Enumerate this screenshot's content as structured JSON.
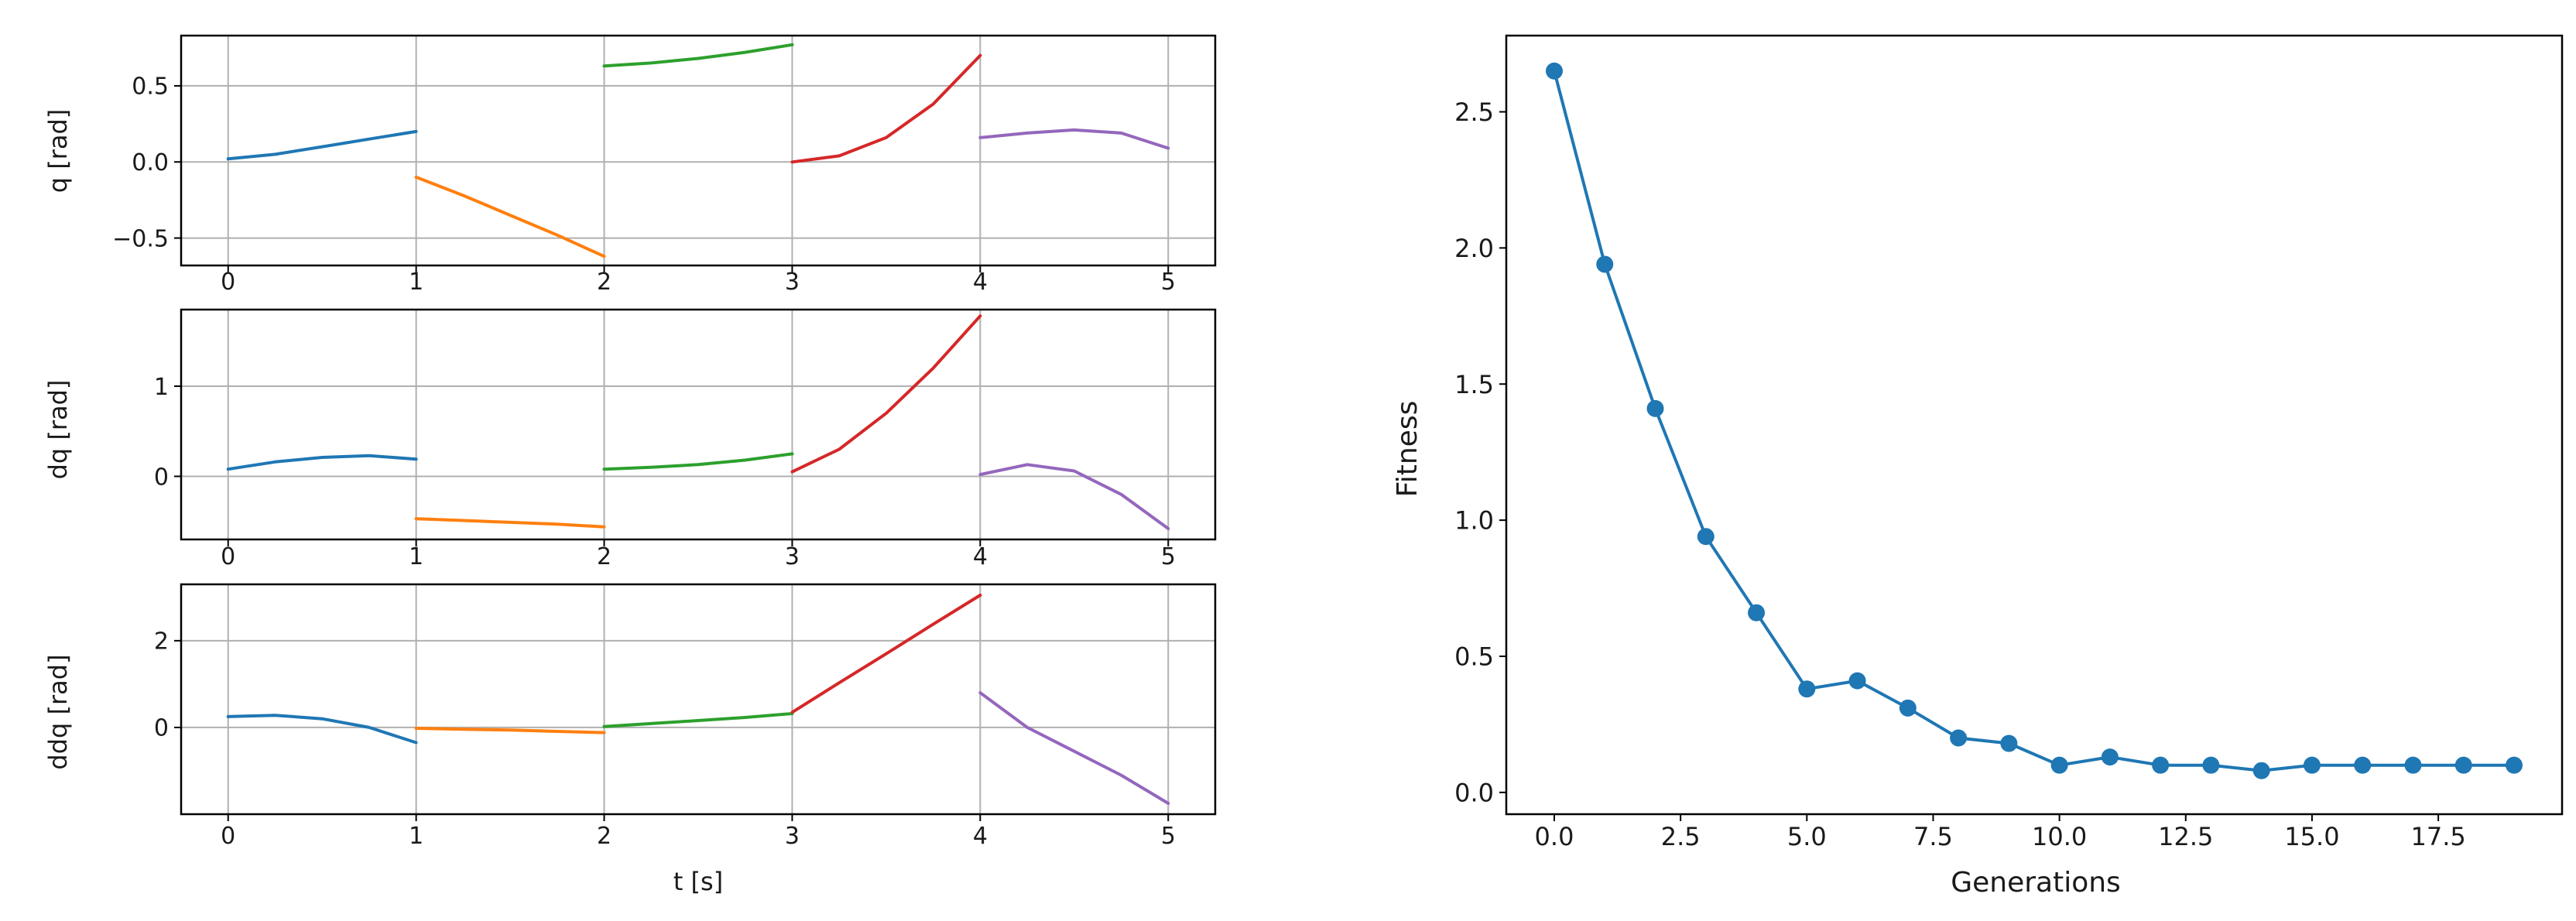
{
  "chart_data": [
    {
      "type": "line",
      "panel": "q",
      "ylabel": "q [rad]",
      "xlabel": "",
      "xlim": [
        -0.25,
        5.25
      ],
      "ylim": [
        -0.68,
        0.83
      ],
      "xticks": [
        "0",
        "1",
        "2",
        "3",
        "4",
        "5"
      ],
      "yticks": [
        {
          "value": 0.5,
          "label": "0.5"
        },
        {
          "value": 0.0,
          "label": "0.0"
        },
        {
          "value": -0.5,
          "label": "−0.5"
        }
      ],
      "grid": true,
      "series": [
        {
          "color": "#1f77b4",
          "x": [
            0,
            0.25,
            0.5,
            0.75,
            1.0
          ],
          "y": [
            0.02,
            0.05,
            0.1,
            0.15,
            0.2
          ]
        },
        {
          "color": "#ff7f0e",
          "x": [
            1.0,
            1.25,
            1.5,
            1.75,
            2.0
          ],
          "y": [
            -0.1,
            -0.22,
            -0.35,
            -0.48,
            -0.62
          ]
        },
        {
          "color": "#2ca02c",
          "x": [
            2.0,
            2.25,
            2.5,
            2.75,
            3.0
          ],
          "y": [
            0.63,
            0.65,
            0.68,
            0.72,
            0.77
          ]
        },
        {
          "color": "#d62728",
          "x": [
            3.0,
            3.25,
            3.5,
            3.75,
            4.0
          ],
          "y": [
            0.0,
            0.04,
            0.16,
            0.38,
            0.7
          ]
        },
        {
          "color": "#9467bd",
          "x": [
            4.0,
            4.25,
            4.5,
            4.75,
            5.0
          ],
          "y": [
            0.16,
            0.19,
            0.21,
            0.19,
            0.09
          ]
        }
      ]
    },
    {
      "type": "line",
      "panel": "dq",
      "ylabel": "dq [rad]",
      "xlabel": "",
      "xlim": [
        -0.25,
        5.25
      ],
      "ylim": [
        -0.7,
        1.85
      ],
      "xticks": [
        "0",
        "1",
        "2",
        "3",
        "4",
        "5"
      ],
      "yticks": [
        {
          "value": 1,
          "label": "1"
        },
        {
          "value": 0,
          "label": "0"
        }
      ],
      "grid": true,
      "series": [
        {
          "color": "#1f77b4",
          "x": [
            0,
            0.25,
            0.5,
            0.75,
            1.0
          ],
          "y": [
            0.08,
            0.16,
            0.21,
            0.23,
            0.19
          ]
        },
        {
          "color": "#ff7f0e",
          "x": [
            1.0,
            1.25,
            1.5,
            1.75,
            2.0
          ],
          "y": [
            -0.47,
            -0.49,
            -0.51,
            -0.53,
            -0.56
          ]
        },
        {
          "color": "#2ca02c",
          "x": [
            2.0,
            2.25,
            2.5,
            2.75,
            3.0
          ],
          "y": [
            0.08,
            0.1,
            0.13,
            0.18,
            0.25
          ]
        },
        {
          "color": "#d62728",
          "x": [
            3.0,
            3.25,
            3.5,
            3.75,
            4.0
          ],
          "y": [
            0.05,
            0.3,
            0.7,
            1.2,
            1.78
          ]
        },
        {
          "color": "#9467bd",
          "x": [
            4.0,
            4.25,
            4.5,
            4.75,
            5.0
          ],
          "y": [
            0.02,
            0.13,
            0.06,
            -0.2,
            -0.58
          ]
        }
      ]
    },
    {
      "type": "line",
      "panel": "ddq",
      "ylabel": "ddq [rad]",
      "xlabel": "t [s]",
      "xlim": [
        -0.25,
        5.25
      ],
      "ylim": [
        -2.0,
        3.3
      ],
      "xticks": [
        "0",
        "1",
        "2",
        "3",
        "4",
        "5"
      ],
      "yticks": [
        {
          "value": 2,
          "label": "2"
        },
        {
          "value": 0,
          "label": "0"
        }
      ],
      "grid": true,
      "series": [
        {
          "color": "#1f77b4",
          "x": [
            0,
            0.25,
            0.5,
            0.75,
            1.0
          ],
          "y": [
            0.25,
            0.28,
            0.2,
            0.0,
            -0.35
          ]
        },
        {
          "color": "#ff7f0e",
          "x": [
            1.0,
            1.25,
            1.5,
            1.75,
            2.0
          ],
          "y": [
            -0.02,
            -0.04,
            -0.06,
            -0.09,
            -0.12
          ]
        },
        {
          "color": "#2ca02c",
          "x": [
            2.0,
            2.25,
            2.5,
            2.75,
            3.0
          ],
          "y": [
            0.02,
            0.09,
            0.16,
            0.23,
            0.32
          ]
        },
        {
          "color": "#d62728",
          "x": [
            3.0,
            3.25,
            3.5,
            3.75,
            4.0
          ],
          "y": [
            0.35,
            1.03,
            1.7,
            2.38,
            3.05
          ]
        },
        {
          "color": "#9467bd",
          "x": [
            4.0,
            4.25,
            4.5,
            4.75,
            5.0
          ],
          "y": [
            0.8,
            0.0,
            -0.55,
            -1.1,
            -1.75
          ]
        }
      ]
    },
    {
      "type": "line",
      "panel": "fitness",
      "ylabel": "Fitness",
      "xlabel": "Generations",
      "xlim": [
        -0.95,
        19.95
      ],
      "ylim": [
        -0.08,
        2.78
      ],
      "xticks": [
        {
          "value": 0,
          "label": "0.0"
        },
        {
          "value": 2.5,
          "label": "2.5"
        },
        {
          "value": 5,
          "label": "5.0"
        },
        {
          "value": 7.5,
          "label": "7.5"
        },
        {
          "value": 10,
          "label": "10.0"
        },
        {
          "value": 12.5,
          "label": "12.5"
        },
        {
          "value": 15,
          "label": "15.0"
        },
        {
          "value": 17.5,
          "label": "17.5"
        }
      ],
      "yticks": [
        {
          "value": 0.0,
          "label": "0.0"
        },
        {
          "value": 0.5,
          "label": "0.5"
        },
        {
          "value": 1.0,
          "label": "1.0"
        },
        {
          "value": 1.5,
          "label": "1.5"
        },
        {
          "value": 2.0,
          "label": "2.0"
        },
        {
          "value": 2.5,
          "label": "2.5"
        }
      ],
      "grid": false,
      "markers": true,
      "series": [
        {
          "color": "#1f77b4",
          "x": [
            0,
            1,
            2,
            3,
            4,
            5,
            6,
            7,
            8,
            9,
            10,
            11,
            12,
            13,
            14,
            15,
            16,
            17,
            18,
            19
          ],
          "y": [
            2.65,
            1.94,
            1.41,
            0.94,
            0.66,
            0.38,
            0.41,
            0.31,
            0.2,
            0.18,
            0.1,
            0.13,
            0.1,
            0.1,
            0.08,
            0.1,
            0.1,
            0.1,
            0.1,
            0.1
          ]
        }
      ]
    }
  ]
}
